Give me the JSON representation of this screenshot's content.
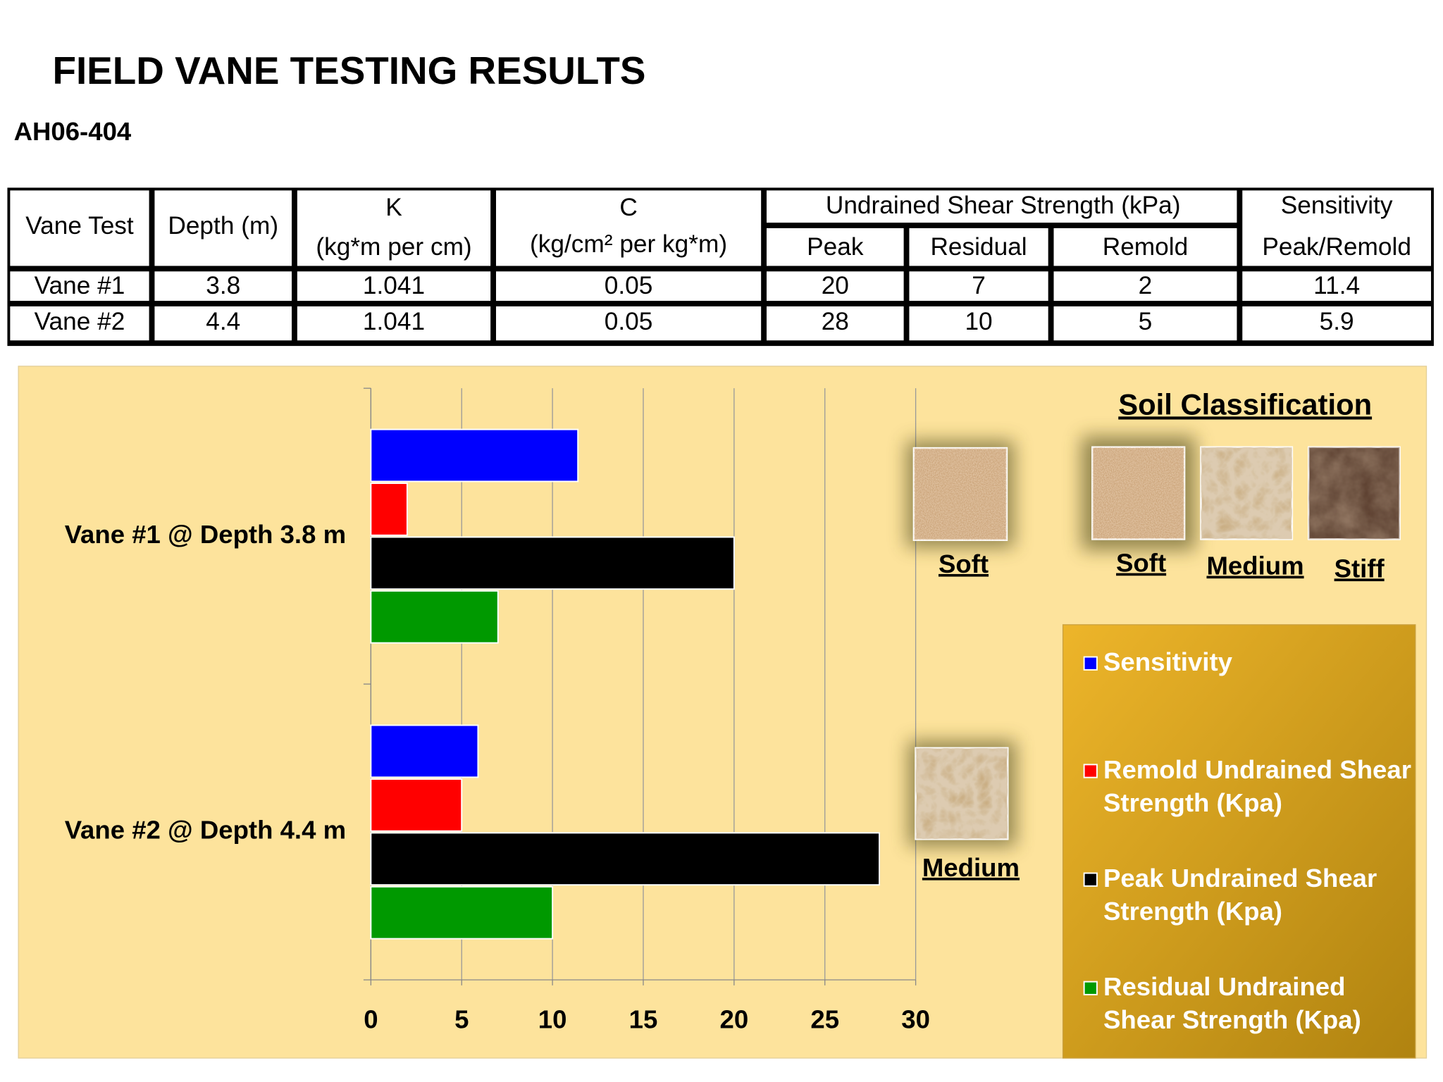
{
  "title": "FIELD VANE TESTING RESULTS",
  "subtitle": "AH06-404",
  "table": {
    "headers": {
      "vane_test": "Vane Test",
      "depth": "Depth (m)",
      "k": [
        "K",
        "(kg*m per cm)"
      ],
      "c": [
        "C",
        "(kg/cm² per kg*m)"
      ],
      "undrained": "Undrained Shear Strength (kPa)",
      "peak": "Peak",
      "residual": "Residual",
      "remold": "Remold",
      "sensitivity": [
        "Sensitivity",
        "Peak/Remold"
      ]
    },
    "rows": [
      [
        "Vane #1",
        "3.8",
        "1.041",
        "0.05",
        "20",
        "7",
        "2",
        "11.4"
      ],
      [
        "Vane #2",
        "4.4",
        "1.041",
        "0.05",
        "28",
        "10",
        "5",
        "5.9"
      ]
    ]
  },
  "chart_data": {
    "type": "hbar",
    "categories": [
      "Vane #1 @ Depth 3.8 m",
      "Vane #2 @ Depth 4.4 m"
    ],
    "series": [
      {
        "name": "Sensitivity",
        "color": "#0000ff",
        "values": [
          11.4,
          5.9
        ]
      },
      {
        "name": "Remold Undrained Shear Strength (Kpa)",
        "color": "#ff0000",
        "values": [
          2,
          5
        ]
      },
      {
        "name": "Peak Undrained Shear Strength (Kpa)",
        "color": "#000000",
        "values": [
          20,
          28
        ]
      },
      {
        "name": "Residual Undrained Shear Strength (Kpa)",
        "color": "#009900",
        "values": [
          7,
          10
        ]
      }
    ],
    "xlim": [
      0,
      30
    ],
    "xticks": [
      0,
      5,
      10,
      15,
      20,
      25,
      30
    ],
    "grid": true,
    "legend": "right",
    "annotations": [
      "Soft",
      "Medium"
    ]
  },
  "soil_classification": {
    "title": "Soil Classification",
    "samples": [
      "Soft",
      "Medium",
      "Stiff"
    ]
  }
}
